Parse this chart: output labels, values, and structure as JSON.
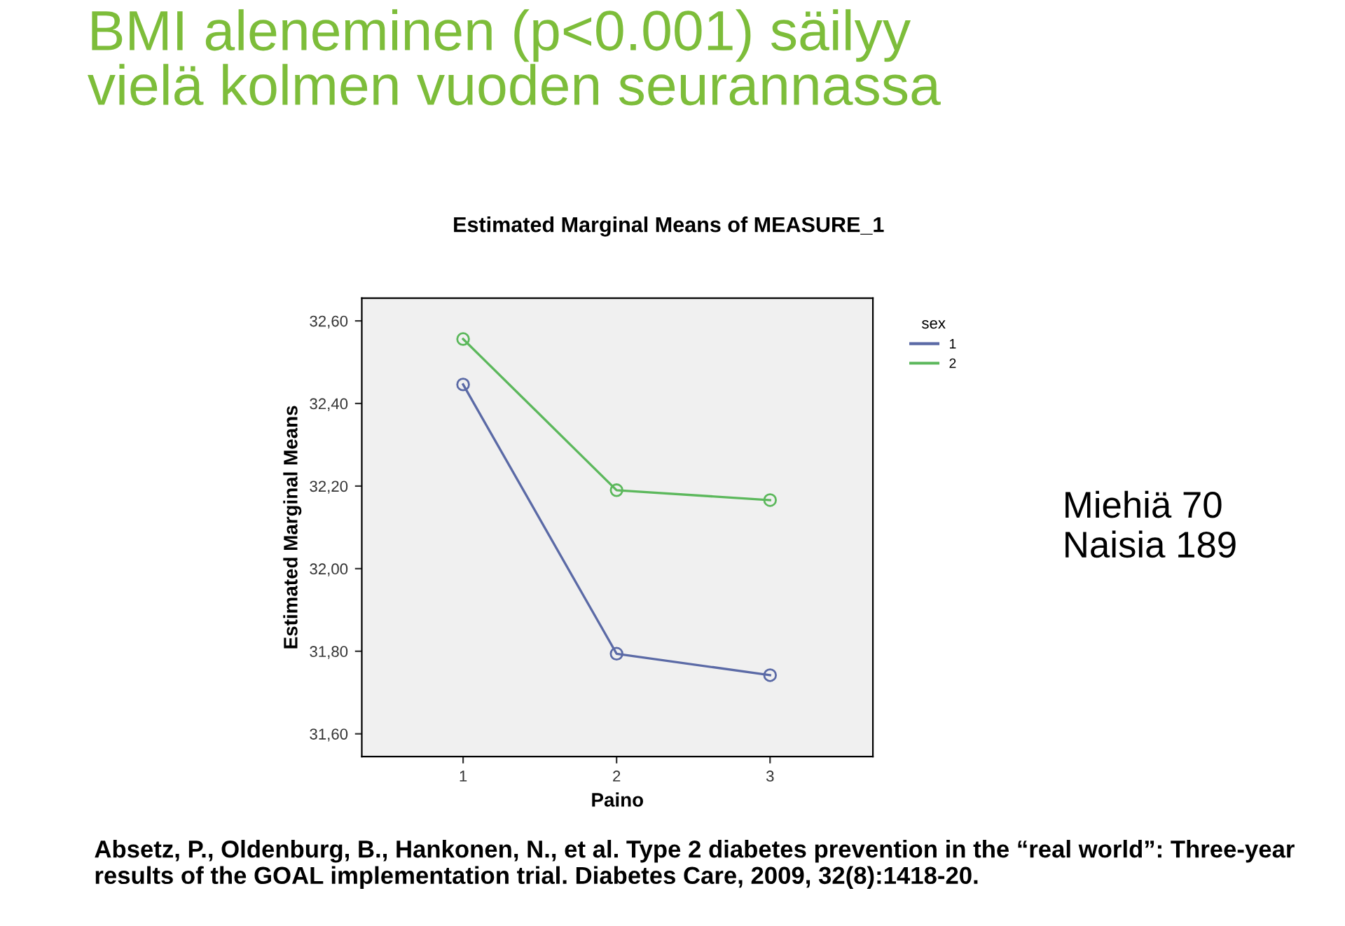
{
  "chart_data": {
    "type": "line",
    "title": "BMI aleneminen (p<0.001) säilyy\nvielä kolmen vuoden seurannassa",
    "subtitle": "Estimated Marginal Means of MEASURE_1",
    "xlabel": "Paino",
    "ylabel": "Estimated Marginal Means",
    "legend_title": "sex",
    "categories": [
      "1",
      "2",
      "3"
    ],
    "series": [
      {
        "name": "1",
        "color": "#5b6aa6",
        "values": [
          32.446,
          31.794,
          31.742
        ]
      },
      {
        "name": "2",
        "color": "#5cb85c",
        "values": [
          32.556,
          32.19,
          32.166
        ]
      }
    ],
    "ylim": [
      31.545,
      32.655
    ],
    "yticks": [
      {
        "value": 31.6,
        "label": "31,60"
      },
      {
        "value": 31.8,
        "label": "31,80"
      },
      {
        "value": 32.0,
        "label": "32,00"
      },
      {
        "value": 32.2,
        "label": "32,20"
      },
      {
        "value": 32.4,
        "label": "32,40"
      },
      {
        "value": 32.6,
        "label": "32,60"
      }
    ],
    "marker": "circle",
    "line_style": "solid",
    "grid": false,
    "legend": "right",
    "annotations": [
      "Miehiä 70\nNaisia 189",
      "Absetz, P., Oldenburg, B., Hankonen, N., et al. Type 2 diabetes prevention in the “real world”: Three-year results of the GOAL implementation trial. Diabetes Care, 2009, 32(8):1418-20."
    ]
  }
}
